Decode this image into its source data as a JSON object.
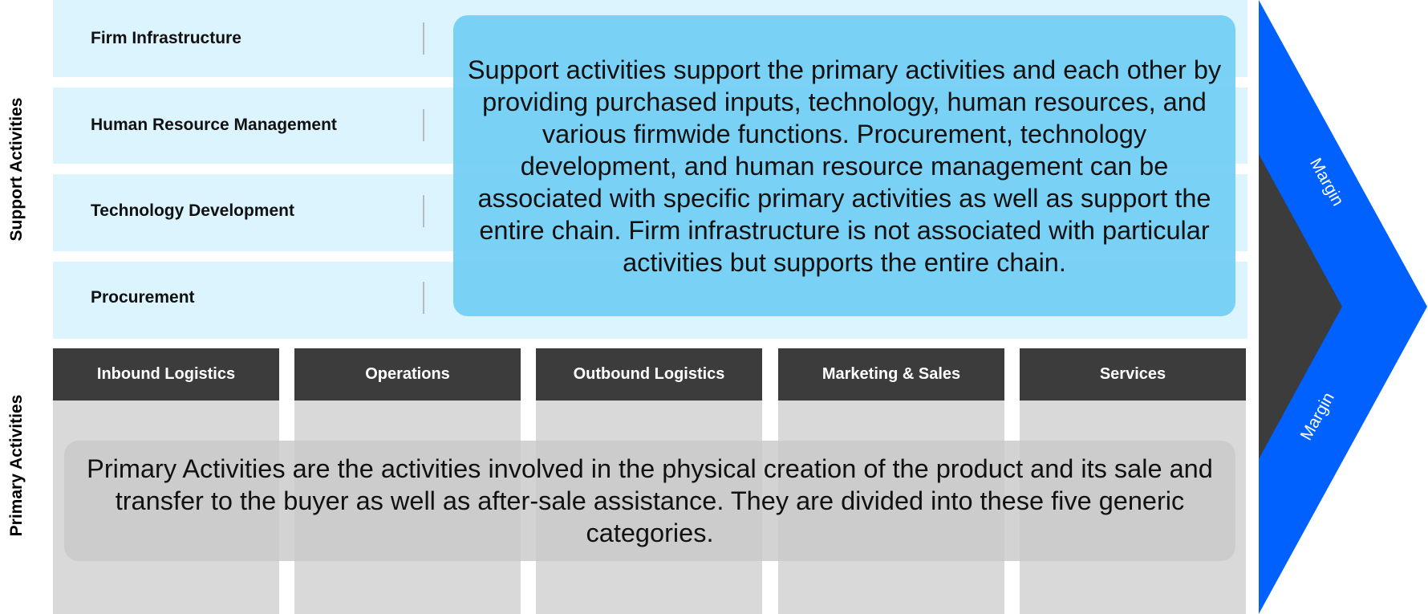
{
  "side_labels": {
    "support": "Support Activities",
    "primary": "Primary Activities"
  },
  "support_activities": [
    "Firm Infrastructure",
    "Human Resource Management",
    "Technology Development",
    "Procurement"
  ],
  "support_description": "Support activities support the primary activities and each other by providing purchased inputs, technology, human resources, and various firmwide functions. Procurement, technology development, and human resource management can be associated with specific primary activities as well as support the entire chain. Firm infrastructure is not associated with particular activities but supports the entire chain.",
  "primary_activities": [
    "Inbound Logistics",
    "Operations",
    "Outbound Logistics",
    "Marketing & Sales",
    "Services"
  ],
  "primary_description": "Primary Activities are the activities involved in the physical creation of the product and its sale and transfer to the buyer as well as after-sale assistance. They are divided into these five generic categories.",
  "margin": {
    "upper_label": "Margin",
    "lower_label": "Margin"
  },
  "colors": {
    "support_bg": "#dcf4fd",
    "support_callout": "#6ecdf5",
    "primary_header": "#3c3c3c",
    "primary_body": "#d9d9d9",
    "margin_blue": "#0061ff",
    "margin_dark": "#3c3c3c"
  }
}
